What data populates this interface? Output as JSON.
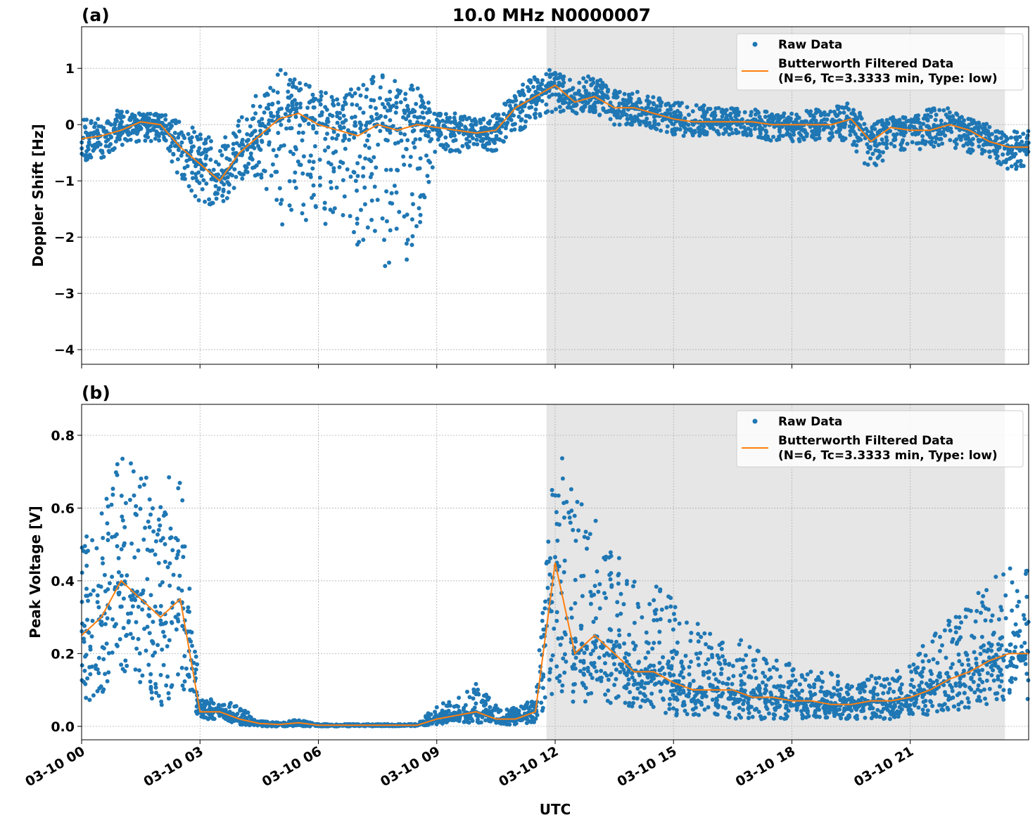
{
  "title": "10.0 MHz N0000007",
  "colors": {
    "raw": "#1f77b4",
    "filtered": "#ff7f0e",
    "shade": "#e6e6e6"
  },
  "legend": {
    "raw_label": "Raw Data",
    "filtered_label_line1": "Butterworth Filtered Data",
    "filtered_label_line2": "(N=6, Tc=3.3333 min, Type: low)",
    "placement": "top-right"
  },
  "x_axis": {
    "label": "UTC",
    "range_hours": [
      0,
      24
    ],
    "tick_hours": [
      0,
      3,
      6,
      9,
      12,
      15,
      18,
      21
    ],
    "tick_labels": [
      "03-10 00",
      "03-10 03",
      "03-10 06",
      "03-10 09",
      "03-10 12",
      "03-10 15",
      "03-10 18",
      "03-10 21"
    ]
  },
  "shaded_region_hours": [
    11.78,
    23.4
  ],
  "grid": true,
  "chart_data": [
    {
      "type": "scatter+line",
      "panel_label": "(a)",
      "ylabel": "Doppler Shift [Hz]",
      "ylim": [
        -4.26,
        1.74
      ],
      "yticks": [
        1,
        0,
        -1,
        -2,
        -3,
        -4
      ],
      "ytick_labels": [
        "1",
        "0",
        "−1",
        "−2",
        "−3",
        "−4"
      ],
      "x_hours": [
        0,
        0.5,
        1,
        1.5,
        2,
        2.5,
        3,
        3.5,
        4,
        4.5,
        5,
        5.5,
        6,
        6.5,
        7,
        7.5,
        8,
        8.5,
        9,
        9.5,
        10,
        10.5,
        11,
        11.5,
        12,
        12.5,
        13,
        13.5,
        14,
        14.5,
        15,
        15.5,
        16,
        16.5,
        17,
        17.5,
        18,
        18.5,
        19,
        19.5,
        20,
        20.5,
        21,
        21.5,
        22,
        22.5,
        23,
        23.5,
        24
      ],
      "series": [
        {
          "name": "Butterworth Filtered Data",
          "values": [
            -0.25,
            -0.2,
            -0.1,
            0.05,
            0.0,
            -0.4,
            -0.7,
            -1.0,
            -0.5,
            -0.2,
            0.1,
            0.2,
            0.0,
            -0.1,
            -0.2,
            0.0,
            -0.1,
            0.0,
            -0.05,
            -0.1,
            -0.15,
            -0.1,
            0.3,
            0.5,
            0.7,
            0.4,
            0.5,
            0.3,
            0.3,
            0.2,
            0.1,
            0.05,
            0.05,
            0.05,
            0.05,
            0.0,
            0.0,
            0.0,
            0.0,
            0.1,
            -0.3,
            -0.05,
            -0.1,
            -0.1,
            0.0,
            -0.1,
            -0.3,
            -0.4,
            -0.4
          ]
        },
        {
          "name": "Raw Data",
          "low": [
            -0.7,
            -0.6,
            -0.4,
            -0.3,
            -0.3,
            -1.0,
            -1.4,
            -1.5,
            -1.0,
            -0.9,
            -1.8,
            -1.7,
            -2.0,
            -1.5,
            -2.2,
            -2.5,
            -2.8,
            -2.0,
            -0.5,
            -0.5,
            -0.4,
            -0.5,
            -0.2,
            0.1,
            0.2,
            0.2,
            0.2,
            0.0,
            0.0,
            -0.1,
            -0.2,
            -0.2,
            -0.2,
            -0.2,
            -0.2,
            -0.3,
            -0.3,
            -0.3,
            -0.3,
            -0.3,
            -1.0,
            -0.4,
            -0.5,
            -0.4,
            -0.4,
            -0.5,
            -0.6,
            -0.8,
            -0.8
          ],
          "high": [
            0.1,
            0.1,
            0.3,
            0.2,
            0.2,
            0.1,
            -0.1,
            -0.3,
            0.1,
            0.6,
            1.0,
            0.8,
            0.6,
            0.5,
            0.7,
            0.9,
            0.8,
            0.7,
            0.2,
            0.2,
            0.1,
            0.2,
            0.6,
            0.9,
            1.0,
            0.8,
            0.9,
            0.6,
            0.6,
            0.5,
            0.4,
            0.4,
            0.3,
            0.3,
            0.3,
            0.2,
            0.2,
            0.3,
            0.3,
            0.4,
            0.0,
            0.2,
            0.1,
            0.3,
            0.3,
            0.1,
            0.0,
            -0.1,
            -0.1
          ]
        }
      ]
    },
    {
      "type": "scatter+line",
      "panel_label": "(b)",
      "ylabel": "Peak Voltage [V]",
      "ylim": [
        -0.037,
        0.885
      ],
      "yticks": [
        0.8,
        0.6,
        0.4,
        0.2,
        0.0
      ],
      "ytick_labels": [
        "0.8",
        "0.6",
        "0.4",
        "0.2",
        "0.0"
      ],
      "x_hours": [
        0,
        0.5,
        1,
        1.5,
        2,
        2.5,
        3,
        3.5,
        4,
        4.5,
        5,
        5.5,
        6,
        6.5,
        7,
        7.5,
        8,
        8.5,
        9,
        9.5,
        10,
        10.5,
        11,
        11.5,
        12,
        12.5,
        13,
        13.5,
        14,
        14.5,
        15,
        15.5,
        16,
        16.5,
        17,
        17.5,
        18,
        18.5,
        19,
        19.5,
        20,
        20.5,
        21,
        21.5,
        22,
        22.5,
        23,
        23.5,
        24
      ],
      "series": [
        {
          "name": "Butterworth Filtered Data",
          "values": [
            0.25,
            0.3,
            0.4,
            0.35,
            0.3,
            0.35,
            0.04,
            0.04,
            0.02,
            0.008,
            0.005,
            0.01,
            0.003,
            0.003,
            0.003,
            0.003,
            0.003,
            0.003,
            0.02,
            0.03,
            0.04,
            0.02,
            0.02,
            0.04,
            0.45,
            0.2,
            0.25,
            0.2,
            0.15,
            0.15,
            0.12,
            0.1,
            0.1,
            0.1,
            0.08,
            0.08,
            0.07,
            0.07,
            0.06,
            0.06,
            0.07,
            0.07,
            0.08,
            0.1,
            0.13,
            0.15,
            0.18,
            0.2,
            0.2
          ]
        },
        {
          "name": "Raw Data",
          "low": [
            0.05,
            0.08,
            0.1,
            0.1,
            0.05,
            0.1,
            0.02,
            0.02,
            0.005,
            0,
            0,
            0,
            0,
            0,
            0,
            0,
            0,
            0,
            0.005,
            0.01,
            0.01,
            0.005,
            0.005,
            0.01,
            0.1,
            0.05,
            0.08,
            0.06,
            0.05,
            0.04,
            0.03,
            0.03,
            0.03,
            0.02,
            0.02,
            0.02,
            0.02,
            0.02,
            0.02,
            0.02,
            0.02,
            0.02,
            0.03,
            0.03,
            0.04,
            0.05,
            0.06,
            0.07,
            0.07
          ],
          "high": [
            0.5,
            0.6,
            0.75,
            0.7,
            0.7,
            0.75,
            0.08,
            0.07,
            0.06,
            0.015,
            0.01,
            0.02,
            0.006,
            0.006,
            0.006,
            0.006,
            0.006,
            0.006,
            0.06,
            0.08,
            0.12,
            0.06,
            0.05,
            0.08,
            0.8,
            0.65,
            0.6,
            0.5,
            0.4,
            0.4,
            0.35,
            0.3,
            0.25,
            0.25,
            0.22,
            0.2,
            0.17,
            0.15,
            0.15,
            0.13,
            0.14,
            0.14,
            0.18,
            0.25,
            0.3,
            0.35,
            0.4,
            0.45,
            0.45
          ]
        }
      ]
    }
  ]
}
